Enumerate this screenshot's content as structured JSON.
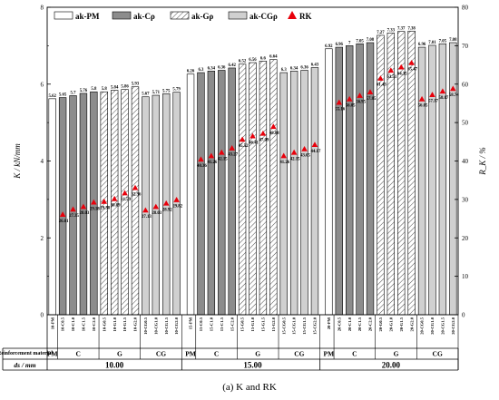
{
  "chart_data": {
    "type": "bar",
    "left_axis": {
      "label": "K / kN/mm",
      "ylim": [
        0,
        8
      ],
      "ticks": [
        "0",
        "2",
        "4",
        "6",
        "8"
      ]
    },
    "right_axis": {
      "label": "R_K / %",
      "ylim": [
        0,
        80
      ],
      "ticks": [
        "0",
        "10",
        "20",
        "30",
        "40",
        "50",
        "60",
        "70",
        "80"
      ]
    },
    "legend": [
      {
        "key": "pm",
        "label": "ak-PM"
      },
      {
        "key": "c",
        "label": "ak-Cρ"
      },
      {
        "key": "g",
        "label": "ak-Gρ"
      },
      {
        "key": "cg",
        "label": "ak-CGρ"
      },
      {
        "key": "rk",
        "label": "RK"
      }
    ],
    "legend_placement": "top",
    "groups": [
      {
        "ds": "10.00",
        "subgroups": [
          {
            "type": "pm",
            "label": "PM",
            "categories": [
              "10-PM"
            ],
            "values": [
              5.62
            ],
            "rk": [
              null
            ],
            "value_labels": [
              "5.62"
            ],
            "rk_labels": [
              ""
            ]
          },
          {
            "type": "c",
            "label": "C",
            "categories": [
              "10-C0.5",
              "10-C1.0",
              "10-C1.5",
              "10-C2.0"
            ],
            "values": [
              5.65,
              5.7,
              5.76,
              5.8
            ],
            "rk": [
              26.01,
              27.35,
              28.03,
              29.18
            ],
            "value_labels": [
              "5.65",
              "5.7",
              "5.76",
              "5.8"
            ],
            "rk_labels": [
              "26.01",
              "27.35",
              "28.03",
              "29.18"
            ]
          },
          {
            "type": "g",
            "label": "G",
            "categories": [
              "10-G0.5",
              "10-G1.0",
              "10-G1.5",
              "10-G2.0"
            ],
            "values": [
              5.8,
              5.84,
              5.86,
              5.93
            ],
            "rk": [
              29.38,
              30.09,
              31.59,
              32.96
            ],
            "value_labels": [
              "5.8",
              "5.84",
              "5.86",
              "5.93"
            ],
            "rk_labels": [
              "29.38",
              "30.09",
              "31.59",
              "32.96"
            ]
          },
          {
            "type": "cg",
            "label": "CG",
            "categories": [
              "10-CG0.5",
              "10-CG1.0",
              "10-CG1.5",
              "10-CG2.0"
            ],
            "values": [
              5.67,
              5.71,
              5.75,
              5.79
            ],
            "rk": [
              27.13,
              28.03,
              28.92,
              29.82
            ],
            "value_labels": [
              "5.67",
              "5.71",
              "5.75",
              "5.79"
            ],
            "rk_labels": [
              "27.13",
              "28.03",
              "28.92",
              "29.82"
            ]
          }
        ]
      },
      {
        "ds": "15.00",
        "subgroups": [
          {
            "type": "pm",
            "label": "PM",
            "categories": [
              "15-PM"
            ],
            "values": [
              6.26
            ],
            "rk": [
              null
            ],
            "value_labels": [
              "6.26"
            ],
            "rk_labels": [
              ""
            ]
          },
          {
            "type": "c",
            "label": "C",
            "categories": [
              "15-C0.5",
              "15-C1.0",
              "15-C1.5",
              "15-C2.0"
            ],
            "values": [
              6.3,
              6.34,
              6.36,
              6.42
            ],
            "rk": [
              40.36,
              41.26,
              42.15,
              43.27
            ],
            "value_labels": [
              "6.3",
              "6.34",
              "6.36",
              "6.42"
            ],
            "rk_labels": [
              "40.36",
              "41.26",
              "42.15",
              "43.27"
            ]
          },
          {
            "type": "g",
            "label": "G",
            "categories": [
              "15-G0.5",
              "15-G1.0",
              "15-G1.5",
              "15-G2.0"
            ],
            "values": [
              6.52,
              6.56,
              6.6,
              6.64
            ],
            "rk": [
              45.52,
              46.41,
              47.09,
              48.88
            ],
            "value_labels": [
              "6.52",
              "6.56",
              "6.6",
              "6.64"
            ],
            "rk_labels": [
              "45.52",
              "46.41",
              "47.09",
              "48.88"
            ]
          },
          {
            "type": "cg",
            "label": "CG",
            "categories": [
              "15-CG0.5",
              "15-CG1.0",
              "15-CG1.5",
              "15-CG2.0"
            ],
            "values": [
              6.3,
              6.34,
              6.36,
              6.43
            ],
            "rk": [
              41.26,
              42.15,
              43.05,
              44.17
            ],
            "value_labels": [
              "6.3",
              "6.34",
              "6.36",
              "6.43"
            ],
            "rk_labels": [
              "41.26",
              "42.15",
              "43.05",
              "44.17"
            ]
          }
        ]
      },
      {
        "ds": "20.00",
        "subgroups": [
          {
            "type": "pm",
            "label": "PM",
            "categories": [
              "20-PM"
            ],
            "values": [
              6.92
            ],
            "rk": [
              null
            ],
            "value_labels": [
              "6.92"
            ],
            "rk_labels": [
              ""
            ]
          },
          {
            "type": "c",
            "label": "C",
            "categories": [
              "20-C0.5",
              "20-C1.0",
              "20-C1.5",
              "20-C2.0"
            ],
            "values": [
              6.96,
              7,
              7.05,
              7.08
            ],
            "rk": [
              55.16,
              56.05,
              56.95,
              57.85
            ],
            "value_labels": [
              "6.96",
              "7",
              "7.05",
              "7.08"
            ],
            "rk_labels": [
              "55.16",
              "56.05",
              "56.95",
              "57.85"
            ]
          },
          {
            "type": "g",
            "label": "G",
            "categories": [
              "20-G0.5",
              "20-G1.0",
              "20-G1.5",
              "20-G2.0"
            ],
            "values": [
              7.27,
              7.33,
              7.37,
              7.38
            ],
            "rk": [
              61.43,
              63.51,
              64.35,
              65.47
            ],
            "value_labels": [
              "7.27",
              "7.33",
              "7.37",
              "7.38"
            ],
            "rk_labels": [
              "61.43",
              "63.51",
              "64.35",
              "65.47"
            ]
          },
          {
            "type": "cg",
            "label": "CG",
            "categories": [
              "20-CG0.5",
              "20-CG1.0",
              "20-CG1.5",
              "20-CG2.0"
            ],
            "values": [
              6.96,
              7.01,
              7.05,
              7.08
            ],
            "rk": [
              56.05,
              57.17,
              58.07,
              58.74
            ],
            "value_labels": [
              "6.96",
              "7.01",
              "7.05",
              "7.08"
            ],
            "rk_labels": [
              "56.05",
              "57.17",
              "58.07",
              "58.74"
            ]
          }
        ]
      }
    ]
  },
  "table": {
    "row1_header": "Reinforcement material",
    "row2_header": "ds / mm"
  },
  "caption": "(a) K and RK",
  "colors": {
    "pm": "#ffffff",
    "c": "#8c8c8c",
    "g": "#ffffff",
    "cg": "#d0d0d0",
    "rk": "#e8000b"
  }
}
